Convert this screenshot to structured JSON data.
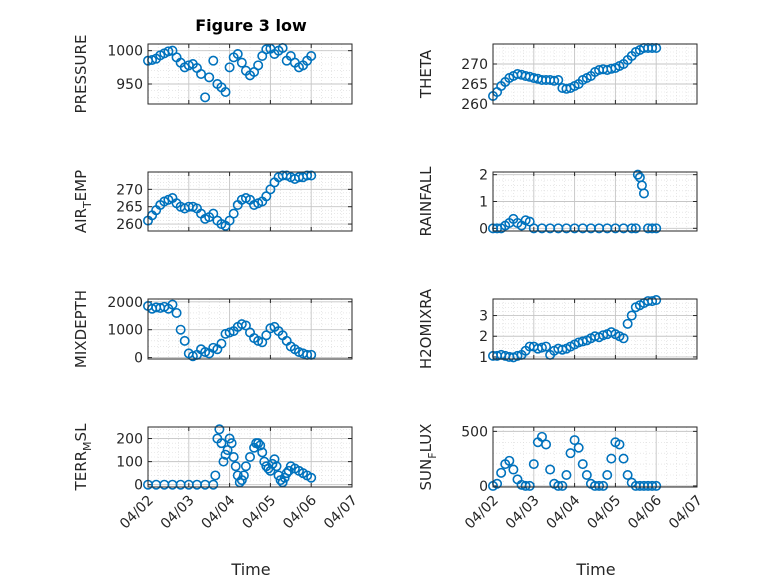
{
  "chart_data": {
    "type": "scatter",
    "title": "Figure 3 low",
    "marker_color": "#0072BD",
    "grid": true,
    "minor_grid": true,
    "x_tick_labels": [
      "04/02",
      "04/03",
      "04/04",
      "04/05",
      "04/06",
      "04/07"
    ],
    "x_range_days": [
      2,
      7
    ],
    "panels": [
      {
        "id": "pressure",
        "ylabel": "PRESSURE",
        "ylabel_sub": "",
        "ylabel_tail": "",
        "ylim": [
          920,
          1010
        ],
        "yticks": [
          950,
          1000
        ],
        "ytick_labels": [
          "950",
          "1000"
        ],
        "x": [
          2.0,
          2.1,
          2.2,
          2.3,
          2.4,
          2.5,
          2.6,
          2.7,
          2.8,
          2.9,
          3.0,
          3.1,
          3.2,
          3.3,
          3.4,
          3.5,
          3.6,
          3.7,
          3.8,
          3.9,
          4.0,
          4.1,
          4.2,
          4.3,
          4.4,
          4.5,
          4.6,
          4.7,
          4.8,
          4.9,
          5.0,
          5.1,
          5.2,
          5.3,
          5.4,
          5.5,
          5.6,
          5.7,
          5.8,
          5.9,
          6.0
        ],
        "y": [
          985,
          986,
          988,
          993,
          996,
          999,
          1000,
          990,
          982,
          975,
          978,
          980,
          974,
          965,
          930,
          960,
          985,
          950,
          945,
          938,
          975,
          990,
          995,
          982,
          970,
          963,
          968,
          978,
          992,
          1002,
          1003,
          995,
          1000,
          1004,
          985,
          992,
          982,
          975,
          978,
          985,
          992
        ]
      },
      {
        "id": "theta",
        "ylabel": "THETA",
        "ylabel_sub": "",
        "ylabel_tail": "",
        "ylim": [
          260,
          275
        ],
        "yticks": [
          260,
          265,
          270
        ],
        "ytick_labels": [
          "260",
          "265",
          "270"
        ],
        "x": [
          2.0,
          2.1,
          2.2,
          2.3,
          2.4,
          2.5,
          2.6,
          2.7,
          2.8,
          2.9,
          3.0,
          3.1,
          3.2,
          3.3,
          3.4,
          3.5,
          3.6,
          3.7,
          3.8,
          3.9,
          4.0,
          4.1,
          4.2,
          4.3,
          4.4,
          4.5,
          4.6,
          4.7,
          4.8,
          4.9,
          5.0,
          5.1,
          5.2,
          5.3,
          5.4,
          5.5,
          5.6,
          5.7,
          5.8,
          5.9,
          6.0
        ],
        "y": [
          262,
          263,
          264.5,
          265.5,
          266.5,
          267,
          267.5,
          267.3,
          267,
          266.8,
          266.5,
          266.3,
          266,
          266,
          266,
          265.8,
          266,
          264,
          263.8,
          264,
          264.5,
          265,
          266,
          266.5,
          267,
          268,
          268.5,
          268.7,
          268.5,
          268.8,
          269,
          269.5,
          270,
          271,
          272,
          273,
          273.5,
          274,
          274,
          274,
          274
        ]
      },
      {
        "id": "air_temp",
        "ylabel": "AIR",
        "ylabel_sub": "T",
        "ylabel_tail": "EMP",
        "ylim": [
          258,
          275
        ],
        "yticks": [
          260,
          265,
          270
        ],
        "ytick_labels": [
          "260",
          "265",
          "270"
        ],
        "x": [
          2.0,
          2.1,
          2.2,
          2.3,
          2.4,
          2.5,
          2.6,
          2.7,
          2.8,
          2.9,
          3.0,
          3.1,
          3.2,
          3.3,
          3.4,
          3.5,
          3.6,
          3.7,
          3.8,
          3.9,
          4.0,
          4.1,
          4.2,
          4.3,
          4.4,
          4.5,
          4.6,
          4.7,
          4.8,
          4.9,
          5.0,
          5.1,
          5.2,
          5.3,
          5.4,
          5.5,
          5.6,
          5.7,
          5.8,
          5.9,
          6.0
        ],
        "y": [
          261,
          262.5,
          264,
          265.5,
          266.5,
          267,
          267.5,
          266,
          265,
          264.5,
          265,
          265,
          264.5,
          263,
          261.5,
          262,
          263,
          261,
          260,
          259.5,
          261,
          263,
          265.5,
          267,
          267.5,
          267,
          265.5,
          266,
          266.5,
          268,
          270,
          272,
          273.5,
          274,
          274,
          273.5,
          273,
          273.5,
          273.5,
          274,
          274
        ]
      },
      {
        "id": "rainfall",
        "ylabel": "RAINFALL",
        "ylabel_sub": "",
        "ylabel_tail": "",
        "ylim": [
          -0.1,
          2.1
        ],
        "yticks": [
          0,
          1,
          2
        ],
        "ytick_labels": [
          "0",
          "1",
          "2"
        ],
        "x": [
          2.0,
          2.1,
          2.2,
          2.3,
          2.4,
          2.5,
          2.6,
          2.7,
          2.8,
          2.9,
          3.0,
          3.2,
          3.4,
          3.6,
          3.8,
          4.0,
          4.2,
          4.4,
          4.6,
          4.8,
          5.0,
          5.2,
          5.4,
          5.5,
          5.55,
          5.6,
          5.65,
          5.7,
          5.8,
          5.9,
          6.0
        ],
        "y": [
          0,
          0,
          0,
          0.1,
          0.2,
          0.35,
          0.2,
          0.1,
          0.3,
          0.25,
          0,
          0,
          0,
          0,
          0,
          0,
          0,
          0,
          0,
          0,
          0,
          0,
          0,
          0,
          2.0,
          1.9,
          1.6,
          1.3,
          0,
          0,
          0
        ]
      },
      {
        "id": "mixdepth",
        "ylabel": "MIXDEPTH",
        "ylabel_sub": "",
        "ylabel_tail": "",
        "ylim": [
          -50,
          2100
        ],
        "yticks": [
          0,
          1000,
          2000
        ],
        "ytick_labels": [
          "0",
          "1000",
          "2000"
        ],
        "x": [
          2.0,
          2.1,
          2.2,
          2.3,
          2.4,
          2.5,
          2.6,
          2.7,
          2.8,
          2.9,
          3.0,
          3.1,
          3.2,
          3.3,
          3.4,
          3.5,
          3.6,
          3.7,
          3.8,
          3.9,
          4.0,
          4.1,
          4.2,
          4.3,
          4.4,
          4.5,
          4.6,
          4.7,
          4.8,
          4.9,
          5.0,
          5.1,
          5.2,
          5.3,
          5.4,
          5.5,
          5.6,
          5.7,
          5.8,
          5.9,
          6.0
        ],
        "y": [
          1850,
          1750,
          1800,
          1780,
          1820,
          1750,
          1900,
          1600,
          1000,
          600,
          150,
          50,
          100,
          300,
          200,
          150,
          350,
          300,
          500,
          850,
          900,
          950,
          1100,
          1200,
          1150,
          900,
          700,
          600,
          550,
          800,
          1050,
          1100,
          950,
          800,
          600,
          400,
          300,
          200,
          150,
          100,
          100
        ]
      },
      {
        "id": "h2omixra",
        "ylabel": "H2OMIXRA",
        "ylabel_sub": "",
        "ylabel_tail": "",
        "ylim": [
          0.9,
          3.8
        ],
        "yticks": [
          1,
          2,
          3
        ],
        "ytick_labels": [
          "1",
          "2",
          "3"
        ],
        "x": [
          2.0,
          2.1,
          2.2,
          2.3,
          2.4,
          2.5,
          2.6,
          2.7,
          2.8,
          2.9,
          3.0,
          3.1,
          3.2,
          3.3,
          3.4,
          3.5,
          3.6,
          3.7,
          3.8,
          3.9,
          4.0,
          4.1,
          4.2,
          4.3,
          4.4,
          4.5,
          4.6,
          4.7,
          4.8,
          4.9,
          5.0,
          5.1,
          5.2,
          5.3,
          5.4,
          5.5,
          5.6,
          5.7,
          5.8,
          5.9,
          6.0
        ],
        "y": [
          1.05,
          1.05,
          1.1,
          1.05,
          1.0,
          0.98,
          1.05,
          1.1,
          1.3,
          1.5,
          1.5,
          1.4,
          1.45,
          1.5,
          1.1,
          1.3,
          1.4,
          1.35,
          1.4,
          1.5,
          1.6,
          1.7,
          1.75,
          1.8,
          1.9,
          2.0,
          1.95,
          2.05,
          2.1,
          2.2,
          2.1,
          2.0,
          1.9,
          2.6,
          3.0,
          3.4,
          3.5,
          3.6,
          3.7,
          3.7,
          3.75
        ]
      },
      {
        "id": "terr_msl",
        "ylabel": "TERR",
        "ylabel_sub": "M",
        "ylabel_tail": "SL",
        "ylim": [
          -10,
          250
        ],
        "yticks": [
          0,
          100,
          200
        ],
        "ytick_labels": [
          "0",
          "100",
          "200"
        ],
        "x": [
          2.0,
          2.2,
          2.4,
          2.6,
          2.8,
          3.0,
          3.2,
          3.4,
          3.6,
          3.65,
          3.7,
          3.75,
          3.8,
          3.85,
          3.9,
          3.95,
          4.0,
          4.05,
          4.1,
          4.15,
          4.2,
          4.25,
          4.3,
          4.35,
          4.4,
          4.5,
          4.6,
          4.65,
          4.7,
          4.75,
          4.8,
          4.85,
          4.9,
          4.95,
          5.0,
          5.05,
          5.1,
          5.15,
          5.2,
          5.25,
          5.3,
          5.35,
          5.4,
          5.45,
          5.5,
          5.6,
          5.7,
          5.8,
          5.9,
          6.0
        ],
        "y": [
          0,
          0,
          0,
          0,
          0,
          0,
          0,
          0,
          0,
          40,
          200,
          240,
          180,
          100,
          130,
          150,
          200,
          180,
          120,
          80,
          40,
          10,
          20,
          40,
          80,
          120,
          160,
          180,
          180,
          170,
          140,
          100,
          80,
          70,
          60,
          90,
          110,
          80,
          40,
          20,
          10,
          30,
          50,
          60,
          80,
          70,
          60,
          50,
          40,
          30
        ]
      },
      {
        "id": "sun_flux",
        "ylabel": "SUN",
        "ylabel_sub": "F",
        "ylabel_tail": "LUX",
        "ylim": [
          -10,
          540
        ],
        "yticks": [
          0,
          500
        ],
        "ytick_labels": [
          "0",
          "500"
        ],
        "x": [
          2.0,
          2.1,
          2.2,
          2.3,
          2.4,
          2.5,
          2.6,
          2.7,
          2.8,
          2.9,
          3.0,
          3.1,
          3.2,
          3.3,
          3.4,
          3.5,
          3.6,
          3.7,
          3.8,
          3.9,
          4.0,
          4.1,
          4.2,
          4.3,
          4.4,
          4.5,
          4.6,
          4.7,
          4.8,
          4.9,
          5.0,
          5.1,
          5.2,
          5.3,
          5.4,
          5.5,
          5.6,
          5.7,
          5.8,
          5.9,
          6.0
        ],
        "y": [
          0,
          20,
          120,
          200,
          230,
          150,
          60,
          10,
          0,
          0,
          200,
          400,
          450,
          380,
          150,
          20,
          0,
          0,
          100,
          300,
          420,
          350,
          200,
          100,
          20,
          0,
          0,
          0,
          100,
          250,
          400,
          380,
          250,
          100,
          30,
          0,
          0,
          0,
          0,
          0,
          0
        ]
      }
    ]
  }
}
